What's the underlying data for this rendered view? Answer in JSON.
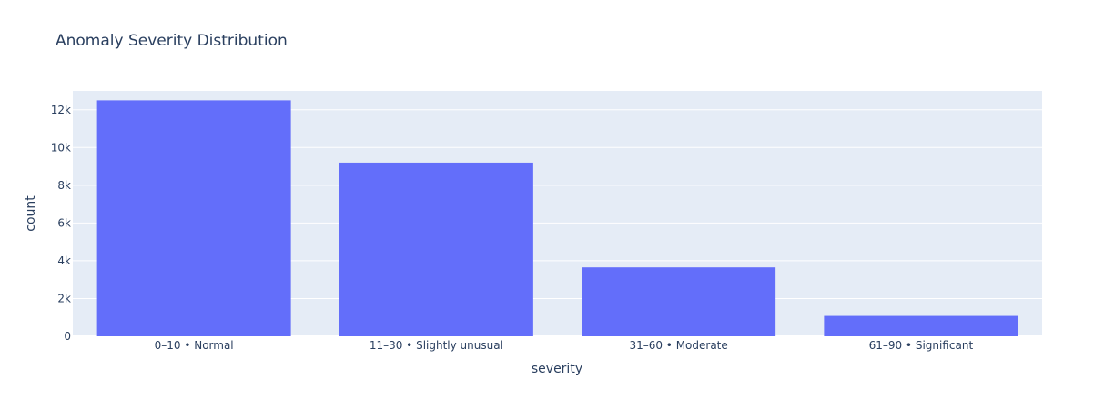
{
  "chart_data": {
    "type": "bar",
    "title": "Anomaly Severity Distribution",
    "xlabel": "severity",
    "ylabel": "count",
    "categories": [
      "0–10 • Normal",
      "11–30 • Slightly unusual",
      "31–60 • Moderate",
      "61–90 • Significant"
    ],
    "values": [
      12500,
      9200,
      3650,
      1080
    ],
    "ylim": [
      0,
      13000
    ],
    "yticks": [
      {
        "value": 0,
        "label": "0"
      },
      {
        "value": 2000,
        "label": "2k"
      },
      {
        "value": 4000,
        "label": "4k"
      },
      {
        "value": 6000,
        "label": "6k"
      },
      {
        "value": 8000,
        "label": "8k"
      },
      {
        "value": 10000,
        "label": "10k"
      },
      {
        "value": 12000,
        "label": "12k"
      }
    ],
    "grid": true,
    "colors": {
      "bar": "#636efa",
      "plot_background": "#e5ecf6",
      "gridline": "#ffffff",
      "text": "#2a3f5f"
    }
  }
}
